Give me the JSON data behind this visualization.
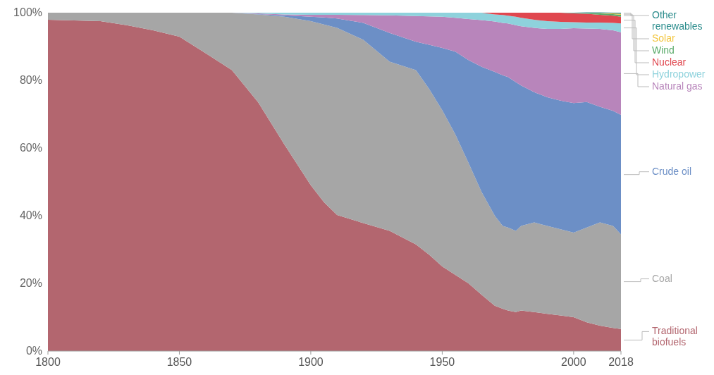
{
  "chart_data": {
    "type": "area",
    "stacked": true,
    "legend": "right",
    "x": [
      1800,
      1810,
      1820,
      1830,
      1840,
      1850,
      1860,
      1870,
      1880,
      1890,
      1900,
      1905,
      1910,
      1920,
      1930,
      1940,
      1945,
      1950,
      1955,
      1960,
      1965,
      1970,
      1973,
      1975,
      1978,
      1980,
      1985,
      1990,
      1995,
      2000,
      2005,
      2010,
      2015,
      2018
    ],
    "xlim": [
      1800,
      2018
    ],
    "xticks": [
      1800,
      1850,
      1900,
      1950,
      2000,
      2018
    ],
    "ylim": [
      0,
      100
    ],
    "yticks": [
      {
        "value": 0,
        "label": "0%"
      },
      {
        "value": 20,
        "label": "20%"
      },
      {
        "value": 40,
        "label": "40%"
      },
      {
        "value": 60,
        "label": "60%"
      },
      {
        "value": 80,
        "label": "80%"
      },
      {
        "value": 100,
        "label": "100%"
      }
    ],
    "series": [
      {
        "name": "Traditional biofuels",
        "color": "#b3666f",
        "values": [
          97.9,
          97.7,
          97.5,
          96.3,
          94.8,
          92.9,
          88,
          83,
          73.5,
          61,
          49,
          44,
          40.2,
          37.8,
          35.5,
          31.5,
          28.5,
          25,
          22.5,
          20,
          16.6,
          13.4,
          12.5,
          12,
          11.5,
          12,
          11.5,
          11,
          10.5,
          10,
          8.5,
          7.5,
          6.8,
          6.5
        ]
      },
      {
        "name": "Coal",
        "color": "#a6a6a6",
        "values": [
          2.1,
          2.3,
          2.5,
          3.7,
          5.2,
          7.1,
          12,
          17,
          26,
          37.8,
          48.5,
          52.5,
          55.3,
          54.2,
          50,
          51.5,
          49,
          46.2,
          41.5,
          35.6,
          30.4,
          26.6,
          24.5,
          24.5,
          24,
          25,
          26.5,
          26,
          25.5,
          25,
          28,
          30.5,
          30.2,
          28
        ]
      },
      {
        "name": "Crude oil",
        "color": "#6c8fc6",
        "values": [
          0,
          0,
          0,
          0,
          0,
          0,
          0,
          0,
          0.1,
          0.4,
          1.3,
          2.1,
          2.8,
          5,
          8.5,
          8.4,
          13,
          18.4,
          24.5,
          30.4,
          37,
          42.5,
          44.5,
          44.5,
          44,
          41.5,
          38.5,
          38,
          38,
          38.3,
          37.1,
          34.2,
          34,
          35.3
        ]
      },
      {
        "name": "Natural gas",
        "color": "#b885bb",
        "values": [
          0,
          0,
          0,
          0,
          0,
          0,
          0,
          0,
          0.2,
          0.3,
          0.6,
          0.8,
          1.1,
          2.3,
          5.2,
          7.6,
          8.4,
          9.2,
          10,
          12.1,
          13.8,
          14.9,
          15.5,
          15.8,
          16.8,
          17.5,
          19,
          20.2,
          21.2,
          22.1,
          21.7,
          23,
          23.8,
          24.4
        ]
      },
      {
        "name": "Hydropower",
        "color": "#8ed2dc",
        "values": [
          0,
          0,
          0,
          0,
          0,
          0,
          0,
          0,
          0.2,
          0.5,
          0.6,
          0.6,
          0.6,
          0.7,
          0.8,
          1,
          1.1,
          1.2,
          1.5,
          1.9,
          2.2,
          2.1,
          2.3,
          2.3,
          2.5,
          2.5,
          2.4,
          2.3,
          2.1,
          1.8,
          1.8,
          1.9,
          2.2,
          2.6
        ]
      },
      {
        "name": "Nuclear",
        "color": "#e0474f",
        "values": [
          0,
          0,
          0,
          0,
          0,
          0,
          0,
          0,
          0,
          0,
          0,
          0,
          0,
          0,
          0,
          0,
          0,
          0,
          0,
          0,
          0,
          0.5,
          0.7,
          0.9,
          1.2,
          1.5,
          2.1,
          2.5,
          2.7,
          2.6,
          2.6,
          2.3,
          2.1,
          2
        ]
      },
      {
        "name": "Wind",
        "color": "#5aab6a",
        "values": [
          0,
          0,
          0,
          0,
          0,
          0,
          0,
          0,
          0,
          0,
          0,
          0,
          0,
          0,
          0,
          0,
          0,
          0,
          0,
          0,
          0,
          0,
          0,
          0,
          0,
          0,
          0,
          0,
          0,
          0.1,
          0.2,
          0.4,
          0.5,
          0.6
        ]
      },
      {
        "name": "Solar",
        "color": "#f2c53d",
        "values": [
          0,
          0,
          0,
          0,
          0,
          0,
          0,
          0,
          0,
          0,
          0,
          0,
          0,
          0,
          0,
          0,
          0,
          0,
          0,
          0,
          0,
          0,
          0,
          0,
          0,
          0,
          0,
          0,
          0,
          0,
          0,
          0.1,
          0.2,
          0.3
        ]
      },
      {
        "name": "Other renewables",
        "color": "#2b8c8c",
        "values": [
          0,
          0,
          0,
          0,
          0,
          0,
          0,
          0,
          0,
          0,
          0,
          0,
          0,
          0,
          0,
          0,
          0,
          0,
          0,
          0,
          0,
          0,
          0,
          0,
          0,
          0,
          0,
          0,
          0,
          0.1,
          0.2,
          0.2,
          0.2,
          0.3
        ]
      }
    ]
  }
}
